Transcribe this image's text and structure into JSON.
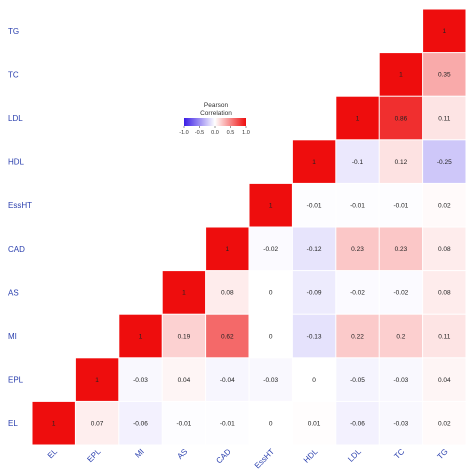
{
  "chart_data": {
    "type": "heatmap",
    "title": "",
    "variables": [
      "EL",
      "EPL",
      "MI",
      "AS",
      "CAD",
      "EssHT",
      "HDL",
      "LDL",
      "TC",
      "TG"
    ],
    "row_labels_top_to_bottom": [
      "TG",
      "TC",
      "LDL",
      "HDL",
      "EssHT",
      "CAD",
      "AS",
      "MI",
      "EPL",
      "EL"
    ],
    "column_labels": [
      "EL",
      "EPL",
      "MI",
      "AS",
      "CAD",
      "EssHT",
      "HDL",
      "LDL",
      "TC",
      "TG"
    ],
    "rows": [
      {
        "row": "TG",
        "values": [
          null,
          null,
          null,
          null,
          null,
          null,
          null,
          null,
          null,
          "1"
        ]
      },
      {
        "row": "TC",
        "values": [
          null,
          null,
          null,
          null,
          null,
          null,
          null,
          null,
          "1",
          "0.35"
        ]
      },
      {
        "row": "LDL",
        "values": [
          null,
          null,
          null,
          null,
          null,
          null,
          null,
          "1",
          "0.86",
          "0.11"
        ]
      },
      {
        "row": "HDL",
        "values": [
          null,
          null,
          null,
          null,
          null,
          null,
          "1",
          "-0.1",
          "0.12",
          "-0.25"
        ]
      },
      {
        "row": "EssHT",
        "values": [
          null,
          null,
          null,
          null,
          null,
          "1",
          "-0.01",
          "-0.01",
          "-0.01",
          "0.02"
        ]
      },
      {
        "row": "CAD",
        "values": [
          null,
          null,
          null,
          null,
          "1",
          "-0.02",
          "-0.12",
          "0.23",
          "0.23",
          "0.08"
        ]
      },
      {
        "row": "AS",
        "values": [
          null,
          null,
          null,
          "1",
          "0.08",
          "0",
          "-0.09",
          "-0.02",
          "-0.02",
          "0.08"
        ]
      },
      {
        "row": "MI",
        "values": [
          null,
          null,
          "1",
          "0.19",
          "0.62",
          "0",
          "-0.13",
          "0.22",
          "0.2",
          "0.11"
        ]
      },
      {
        "row": "EPL",
        "values": [
          null,
          "1",
          "-0.03",
          "0.04",
          "-0.04",
          "-0.03",
          "0",
          "-0.05",
          "-0.03",
          "0.04"
        ]
      },
      {
        "row": "EL",
        "values": [
          "1",
          "0.07",
          "-0.06",
          "-0.01",
          "-0.01",
          "0",
          "0.01",
          "-0.06",
          "-0.03",
          "0.02"
        ]
      }
    ],
    "legend": {
      "title": [
        "Pearson",
        "Correlation"
      ],
      "ticks": [
        "-1.0",
        "-0.5",
        "0.0",
        "0.5",
        "1.0"
      ],
      "range": [
        -1,
        1
      ],
      "placement": "top-center"
    },
    "colors": {
      "negative": "#3a1de6",
      "zero": "#ffffff",
      "positive": "#ee0d0d",
      "axis_label": "#2a3fae"
    },
    "grid": false
  }
}
